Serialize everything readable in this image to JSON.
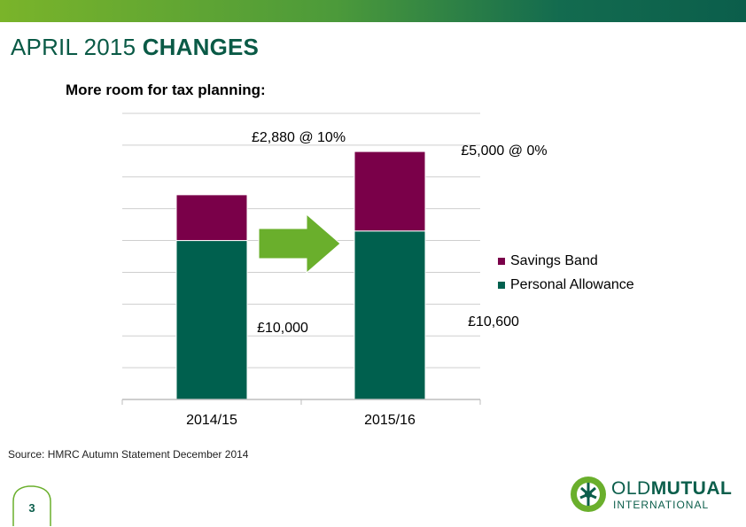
{
  "header": {
    "title_light": "APRIL 2015",
    "title_bold": "CHANGES",
    "subtitle": "More room for tax planning:"
  },
  "colors": {
    "savings_band": "#7a0049",
    "personal_allowance": "#00604e",
    "arrow": "#6aaf2c",
    "title": "#0a5a46"
  },
  "chart_data": {
    "type": "bar",
    "stacked": true,
    "categories": [
      "2014/15",
      "2015/16"
    ],
    "series": [
      {
        "name": "Personal Allowance",
        "values": [
          10000,
          10600
        ]
      },
      {
        "name": "Savings Band",
        "values": [
          2880,
          5000
        ]
      }
    ],
    "ylim": [
      0,
      18000
    ],
    "grid": true,
    "legend": "right",
    "data_labels": {
      "pa_2014": "£10,000",
      "pa_2015": "£10,600",
      "sb_2014": "£2,880 @ 10%",
      "sb_2015": "£5,000 @ 0%"
    },
    "annotation": "arrow-right"
  },
  "source": "Source: HMRC Autumn Statement December 2014",
  "page_number": "3",
  "logo": {
    "icon": "old-mutual-tree-icon",
    "line1_light": "OLD",
    "line1_bold": "MUTUAL",
    "line2": "INTERNATIONAL"
  }
}
